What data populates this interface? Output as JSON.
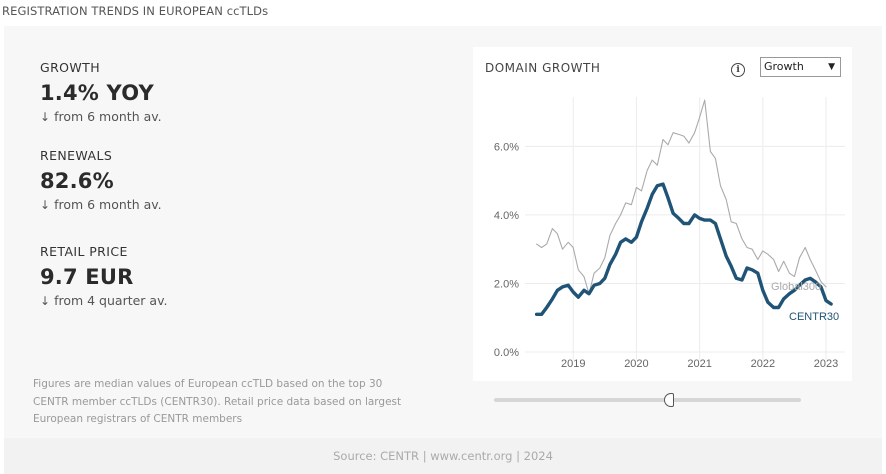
{
  "page_title": "REGISTRATION TRENDS IN EUROPEAN ccTLDs",
  "metrics": [
    {
      "label": "GROWTH",
      "value": "1.4% YOY",
      "note": "from 6 month av.",
      "arrow": "↓"
    },
    {
      "label": "RENEWALS",
      "value": "82.6%",
      "note": "from 6 month av.",
      "arrow": "↓"
    },
    {
      "label": "RETAIL PRICE",
      "value": "9.7 EUR",
      "note": "from 4 quarter av.",
      "arrow": "↓"
    }
  ],
  "footnote": "Figures are median values of European ccTLD based on the top 30 CENTR member ccTLDs (CENTR30). Retail price data based on largest European registrars of CENTR members",
  "chart_card": {
    "title": "DOMAIN GROWTH",
    "info_icon": "info-circle-icon",
    "select_value": "Growth",
    "select_caret_icon": "caret-down-icon"
  },
  "chart_data": {
    "type": "line",
    "title": "DOMAIN GROWTH",
    "xlabel": "",
    "ylabel": "",
    "x_ticks": [
      "2019",
      "2020",
      "2021",
      "2022",
      "2023"
    ],
    "y_ticks": [
      "0.0%",
      "2.0%",
      "4.0%",
      "6.0%"
    ],
    "ylim": [
      0,
      7.5
    ],
    "grid": "vertical and horizontal",
    "legend": "inline labels at line ends",
    "series": [
      {
        "name": "Global300",
        "color": "#aaaaaa",
        "points": [
          [
            2018.42,
            3.15
          ],
          [
            2018.5,
            3.05
          ],
          [
            2018.58,
            3.15
          ],
          [
            2018.67,
            3.6
          ],
          [
            2018.75,
            3.45
          ],
          [
            2018.83,
            3.0
          ],
          [
            2018.92,
            3.2
          ],
          [
            2019.0,
            3.05
          ],
          [
            2019.08,
            2.4
          ],
          [
            2019.17,
            2.2
          ],
          [
            2019.25,
            1.7
          ],
          [
            2019.33,
            2.3
          ],
          [
            2019.42,
            2.45
          ],
          [
            2019.5,
            2.75
          ],
          [
            2019.58,
            3.4
          ],
          [
            2019.67,
            3.75
          ],
          [
            2019.75,
            4.0
          ],
          [
            2019.83,
            4.35
          ],
          [
            2019.92,
            4.3
          ],
          [
            2020.0,
            4.8
          ],
          [
            2020.08,
            4.7
          ],
          [
            2020.17,
            5.3
          ],
          [
            2020.25,
            5.6
          ],
          [
            2020.33,
            5.45
          ],
          [
            2020.42,
            6.2
          ],
          [
            2020.5,
            6.05
          ],
          [
            2020.58,
            6.4
          ],
          [
            2020.67,
            6.35
          ],
          [
            2020.75,
            6.3
          ],
          [
            2020.83,
            6.1
          ],
          [
            2020.92,
            6.4
          ],
          [
            2021.0,
            6.85
          ],
          [
            2021.08,
            7.35
          ],
          [
            2021.17,
            5.85
          ],
          [
            2021.25,
            5.65
          ],
          [
            2021.33,
            4.85
          ],
          [
            2021.42,
            4.45
          ],
          [
            2021.5,
            3.8
          ],
          [
            2021.58,
            3.75
          ],
          [
            2021.67,
            3.3
          ],
          [
            2021.75,
            3.05
          ],
          [
            2021.83,
            3.0
          ],
          [
            2021.92,
            2.7
          ],
          [
            2022.0,
            2.95
          ],
          [
            2022.08,
            2.85
          ],
          [
            2022.17,
            2.7
          ],
          [
            2022.25,
            2.35
          ],
          [
            2022.33,
            2.65
          ],
          [
            2022.42,
            2.3
          ],
          [
            2022.5,
            2.2
          ],
          [
            2022.58,
            2.75
          ],
          [
            2022.67,
            3.05
          ],
          [
            2022.75,
            2.7
          ],
          [
            2022.83,
            2.4
          ],
          [
            2022.92,
            2.05
          ],
          [
            2023.0,
            1.9
          ]
        ]
      },
      {
        "name": "CENTR30",
        "color": "#1f5476",
        "points": [
          [
            2018.42,
            1.1
          ],
          [
            2018.5,
            1.1
          ],
          [
            2018.58,
            1.3
          ],
          [
            2018.67,
            1.55
          ],
          [
            2018.75,
            1.8
          ],
          [
            2018.83,
            1.9
          ],
          [
            2018.92,
            1.95
          ],
          [
            2019.0,
            1.75
          ],
          [
            2019.08,
            1.6
          ],
          [
            2019.17,
            1.8
          ],
          [
            2019.25,
            1.7
          ],
          [
            2019.33,
            1.95
          ],
          [
            2019.42,
            2.0
          ],
          [
            2019.5,
            2.15
          ],
          [
            2019.58,
            2.55
          ],
          [
            2019.67,
            2.85
          ],
          [
            2019.75,
            3.2
          ],
          [
            2019.83,
            3.3
          ],
          [
            2019.92,
            3.2
          ],
          [
            2020.0,
            3.35
          ],
          [
            2020.08,
            3.8
          ],
          [
            2020.17,
            4.2
          ],
          [
            2020.25,
            4.6
          ],
          [
            2020.33,
            4.85
          ],
          [
            2020.42,
            4.9
          ],
          [
            2020.5,
            4.5
          ],
          [
            2020.58,
            4.05
          ],
          [
            2020.67,
            3.9
          ],
          [
            2020.75,
            3.75
          ],
          [
            2020.83,
            3.75
          ],
          [
            2020.92,
            4.0
          ],
          [
            2021.0,
            3.9
          ],
          [
            2021.08,
            3.85
          ],
          [
            2021.17,
            3.85
          ],
          [
            2021.25,
            3.75
          ],
          [
            2021.33,
            3.3
          ],
          [
            2021.42,
            2.8
          ],
          [
            2021.5,
            2.5
          ],
          [
            2021.58,
            2.15
          ],
          [
            2021.67,
            2.1
          ],
          [
            2021.75,
            2.45
          ],
          [
            2021.83,
            2.4
          ],
          [
            2021.92,
            2.3
          ],
          [
            2022.0,
            1.8
          ],
          [
            2022.08,
            1.45
          ],
          [
            2022.17,
            1.3
          ],
          [
            2022.25,
            1.3
          ],
          [
            2022.33,
            1.55
          ],
          [
            2022.42,
            1.7
          ],
          [
            2022.5,
            1.8
          ],
          [
            2022.58,
            1.95
          ],
          [
            2022.67,
            2.1
          ],
          [
            2022.75,
            2.15
          ],
          [
            2022.83,
            2.05
          ],
          [
            2022.92,
            1.9
          ],
          [
            2023.0,
            1.5
          ],
          [
            2023.08,
            1.4
          ]
        ]
      }
    ]
  },
  "slider": {
    "handle_position": 0.57
  },
  "source": "Source: CENTR | www.centr.org | 2024"
}
